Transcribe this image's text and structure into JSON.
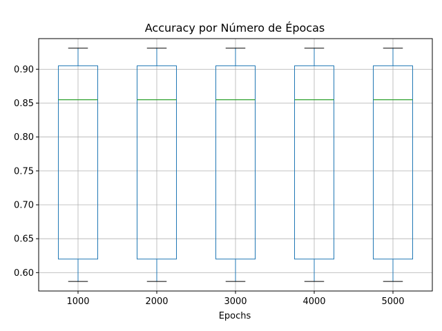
{
  "chart_data": {
    "type": "boxplot",
    "title": "Accuracy por Número de Épocas",
    "xlabel": "Epochs",
    "ylabel": "",
    "categories": [
      "1000",
      "2000",
      "3000",
      "4000",
      "5000"
    ],
    "boxes": [
      {
        "category": "1000",
        "whisker_low": 0.587,
        "q1": 0.62,
        "median": 0.855,
        "q3": 0.905,
        "whisker_high": 0.931
      },
      {
        "category": "2000",
        "whisker_low": 0.587,
        "q1": 0.62,
        "median": 0.855,
        "q3": 0.905,
        "whisker_high": 0.931
      },
      {
        "category": "3000",
        "whisker_low": 0.587,
        "q1": 0.62,
        "median": 0.855,
        "q3": 0.905,
        "whisker_high": 0.931
      },
      {
        "category": "4000",
        "whisker_low": 0.587,
        "q1": 0.62,
        "median": 0.855,
        "q3": 0.905,
        "whisker_high": 0.931
      },
      {
        "category": "5000",
        "whisker_low": 0.587,
        "q1": 0.62,
        "median": 0.855,
        "q3": 0.905,
        "whisker_high": 0.931
      }
    ],
    "yticks": [
      "0.60",
      "0.65",
      "0.70",
      "0.75",
      "0.80",
      "0.85",
      "0.90"
    ],
    "ylim": [
      0.5729,
      0.9451
    ],
    "grid": true,
    "legend": "none",
    "colors": {
      "box": "#1f77b4",
      "median": "#2ca02c",
      "whisker_cap": "#000000",
      "grid": "#b0b0b0",
      "axis": "#000000"
    }
  }
}
